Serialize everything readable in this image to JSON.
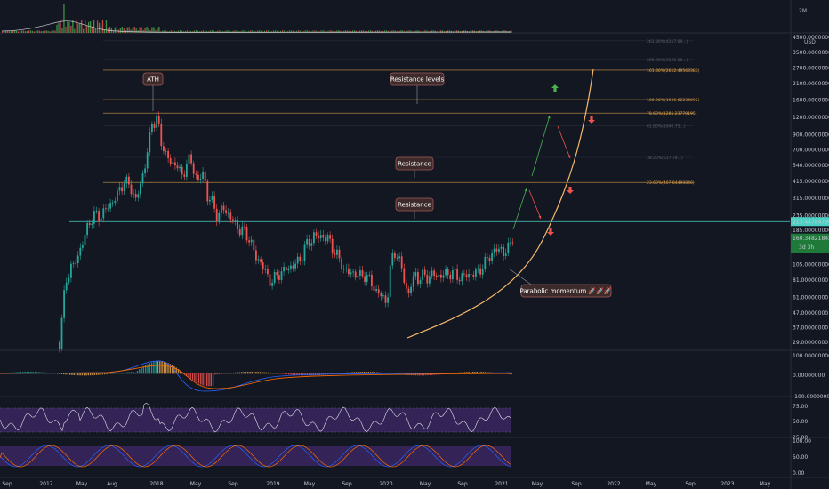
{
  "chart_data": {
    "type": "line",
    "series_kind": "candlestick",
    "scale": "log",
    "currency": "USD",
    "x_ticks": [
      "Sep",
      "2017",
      "May",
      "Aug",
      "2018",
      "May",
      "Sep",
      "2019",
      "May",
      "Sep",
      "2020",
      "May",
      "Sep",
      "2021",
      "May",
      "Sep",
      "2022",
      "May",
      "Sep",
      "2023",
      "May"
    ],
    "y_ticks": [
      "4500.00000000",
      "3500.00000000",
      "2700.00000000",
      "2100.00000000",
      "1600.00000000",
      "1200.00000000",
      "900.00000000",
      "700.00000000",
      "540.00000000",
      "415.00000000",
      "315.00000000",
      "235.00000000",
      "185.00000000",
      "145.00000000",
      "105.00000000",
      "81.00000000",
      "61.00000000",
      "47.00000000",
      "37.00000000",
      "29.00000000"
    ],
    "y_tick_values": [
      4500,
      3500,
      2700,
      2100,
      1600,
      1200,
      900,
      700,
      540,
      415,
      315,
      235,
      185,
      145,
      105,
      81,
      61,
      47,
      37,
      29
    ],
    "current_price_label": "160.34821842",
    "current_price": 160.35,
    "countdown_label": "3d 3h",
    "horizontal_resistance_label": "213.44784790",
    "volume_axis_label": "2M",
    "fib_levels": [
      {
        "label": "261.80%(4257.09...)",
        "value": 4257,
        "color": "#434651"
      },
      {
        "label": "200.00%(3125.10...)",
        "value": 3125,
        "color": "#434651"
      },
      {
        "label": "161.80%(2612.49563380)",
        "value": 2612,
        "color": "#e7a548"
      },
      {
        "label": "100.00%(1606.62234095)",
        "value": 1607,
        "color": "#e7a548"
      },
      {
        "label": "78.60%(1285.23770195)",
        "value": 1285,
        "color": "#e7a548"
      },
      {
        "label": "61.80%(1040.75...)",
        "value": 1040,
        "color": "#434651"
      },
      {
        "label": "38.20%(617.78...)",
        "value": 618,
        "color": "#434651"
      },
      {
        "label": "23.60%(407.84490846)",
        "value": 408,
        "color": "#e7a548"
      }
    ],
    "annotations": [
      {
        "text": "ATH",
        "kind": "callout"
      },
      {
        "text": "Resistance levels",
        "kind": "callout"
      },
      {
        "text": "Resistance",
        "kind": "callout"
      },
      {
        "text": "Resistance",
        "kind": "callout"
      },
      {
        "text": "Parabolic momentum 🚀🚀🚀",
        "kind": "callout"
      }
    ],
    "macd_ticks": [
      "100.00000000",
      "0.00000000",
      "-100.00000000"
    ],
    "rsi_ticks": [
      "75.00",
      "50.00",
      "25.00"
    ],
    "stoch_ticks": [
      "100.00",
      "50.00",
      "0.00"
    ]
  },
  "colors": {
    "background": "#131722",
    "up": "#26a69a",
    "up_bright": "#4caf50",
    "down": "#ef5350",
    "fib": "#e7a548",
    "cyan": "#4dd0c4",
    "curve": "#f3b96b",
    "rsi_band": "#4a2c7a",
    "callout_bg": "#3d2a2a",
    "callout_border": "#a35c5c"
  }
}
